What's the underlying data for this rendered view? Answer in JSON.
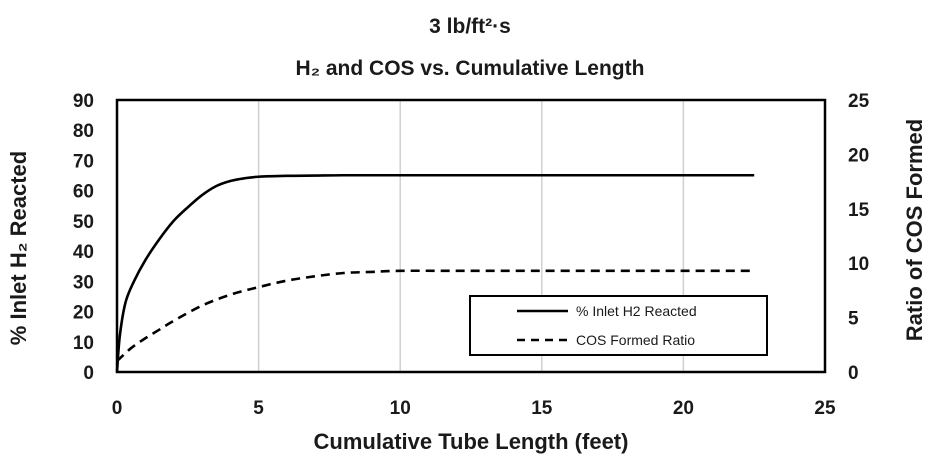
{
  "chart_data": {
    "type": "line",
    "title": "3 lb/ft²·s",
    "subtitle": "H₂ and COS vs. Cumulative Length",
    "xlabel": "Cumulative Tube Length (feet)",
    "ylabel_left": "% Inlet H₂ Reacted",
    "ylabel_right": "Ratio of COS Formed",
    "xlim": [
      0,
      25
    ],
    "ylim_left": [
      0,
      90
    ],
    "ylim_right": [
      0,
      25
    ],
    "x_ticks": [
      "0",
      "5",
      "10",
      "15",
      "20",
      "25"
    ],
    "y_left_ticks": [
      "0",
      "10",
      "20",
      "30",
      "40",
      "50",
      "60",
      "70",
      "80",
      "90"
    ],
    "y_right_ticks": [
      "0",
      "5",
      "10",
      "15",
      "20",
      "25"
    ],
    "grid": "vertical",
    "legend_position": "bottom-right",
    "series": [
      {
        "name": "% Inlet H2 Reacted",
        "axis": "left",
        "style": "solid",
        "color": "#000000",
        "x": [
          0,
          0.1,
          0.3,
          0.6,
          1.0,
          1.5,
          2.0,
          2.5,
          3.0,
          3.5,
          4.0,
          4.5,
          5.0,
          6.0,
          7.0,
          8.0,
          10.0,
          12.0,
          15.0,
          18.0,
          20.0,
          22.5
        ],
        "y": [
          0,
          12,
          23,
          30,
          37,
          44,
          50,
          54.5,
          58.5,
          61.5,
          63.2,
          64.1,
          64.6,
          64.9,
          65.0,
          65.1,
          65.1,
          65.1,
          65.1,
          65.1,
          65.1,
          65.1
        ]
      },
      {
        "name": "COS Formed Ratio",
        "axis": "right",
        "style": "dashed",
        "color": "#000000",
        "x": [
          0,
          0.5,
          1.0,
          1.5,
          2.0,
          3.0,
          4.0,
          5.0,
          6.0,
          7.0,
          8.0,
          9.0,
          10.0,
          12.0,
          15.0,
          18.0,
          20.0,
          22.5
        ],
        "y": [
          1.0,
          2.2,
          3.1,
          3.9,
          4.7,
          6.1,
          7.1,
          7.8,
          8.4,
          8.8,
          9.1,
          9.2,
          9.3,
          9.3,
          9.3,
          9.3,
          9.3,
          9.3
        ]
      }
    ]
  }
}
